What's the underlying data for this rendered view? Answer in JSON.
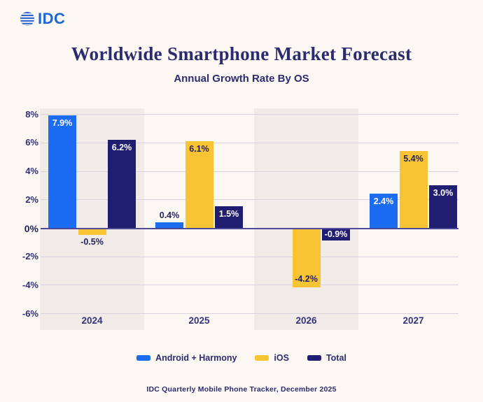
{
  "header": {
    "logo_text": "IDC"
  },
  "colors": {
    "background": "#fbf7f2",
    "year_band": "#f0ebe7",
    "gridline": "#d7d4df",
    "zero_line": "#4c4a96",
    "heading_text": "#2d2b6f",
    "axis_text": "#312f79",
    "outside_label_text": "#26245f",
    "logo_blue": "#1e66d8"
  },
  "chart_data": {
    "type": "bar",
    "title": "Worldwide Smartphone Market Forecast",
    "subtitle": "Annual Growth Rate By OS",
    "categories": [
      "2024",
      "2025",
      "2026",
      "2027"
    ],
    "series": [
      {
        "name": "Android + Harmony",
        "color": "#1b6cf2",
        "value_label_color": "#ffffff",
        "values": [
          7.9,
          0.4,
          null,
          2.4
        ]
      },
      {
        "name": "iOS",
        "color": "#f9c434",
        "value_label_color": "#221f5e",
        "values": [
          -0.5,
          6.1,
          -4.2,
          5.4
        ]
      },
      {
        "name": "Total",
        "color": "#211d70",
        "value_label_color": "#ffffff",
        "values": [
          6.2,
          1.5,
          -0.9,
          3.0
        ]
      }
    ],
    "xlabel": "",
    "ylabel": "",
    "ylim": [
      -6,
      8
    ],
    "yticks": [
      8,
      6,
      4,
      2,
      0,
      -2,
      -4,
      -6
    ],
    "ytick_suffix": "%",
    "value_label_suffix": "%",
    "grid": true,
    "legend_position": "bottom",
    "shaded_year_bands": [
      "2024",
      "2026"
    ],
    "source": "IDC Quarterly Mobile Phone Tracker, December 2025"
  }
}
